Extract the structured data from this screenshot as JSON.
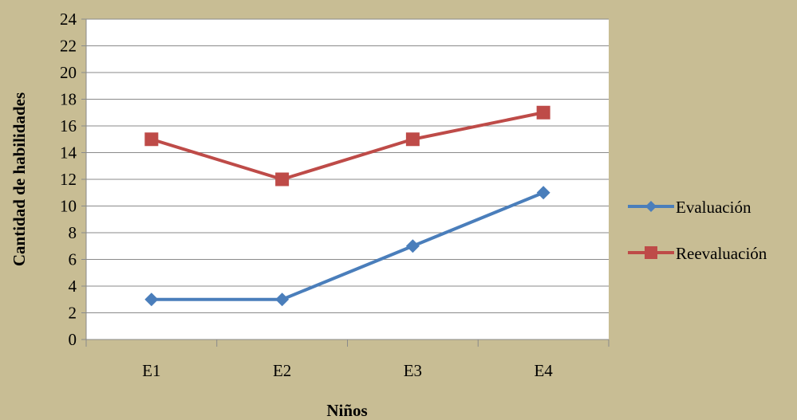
{
  "chart_data": {
    "type": "line",
    "title": "",
    "xlabel": "Niños",
    "ylabel": "Cantidad de habilidades",
    "categories": [
      "E1",
      "E2",
      "E3",
      "E4"
    ],
    "ylim": [
      0,
      24
    ],
    "yticks": [
      0,
      2,
      4,
      6,
      8,
      10,
      12,
      14,
      16,
      18,
      20,
      22,
      24
    ],
    "grid": true,
    "legend_position": "right",
    "series": [
      {
        "name": "Evaluación",
        "values": [
          3,
          3,
          7,
          11
        ],
        "color": "#4a7ebb",
        "marker": "diamond"
      },
      {
        "name": "Reevaluación",
        "values": [
          15,
          12,
          15,
          17
        ],
        "color": "#be4b48",
        "marker": "square"
      }
    ]
  },
  "colors": {
    "background": "#c8bd94",
    "plot_area": "#ffffff",
    "gridline": "#8a8a8a",
    "axis": "#8a8a8a"
  }
}
